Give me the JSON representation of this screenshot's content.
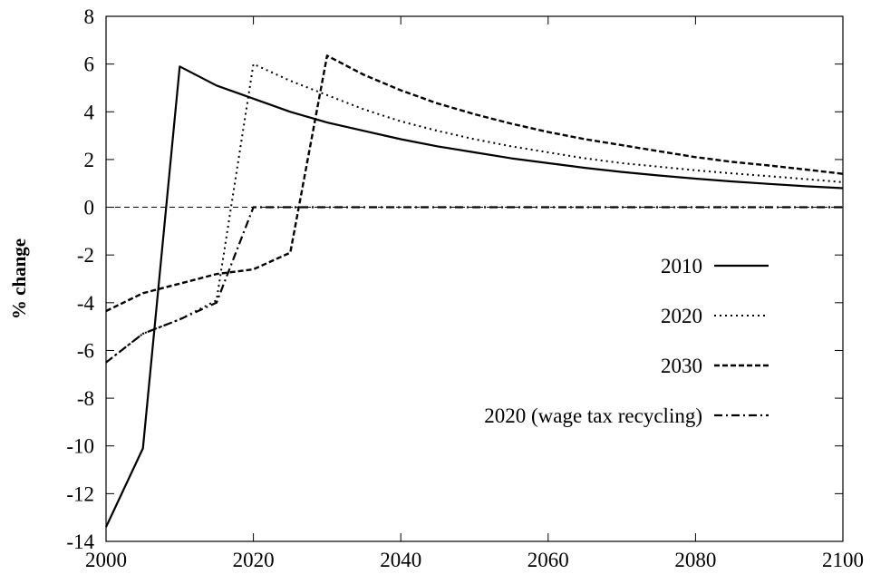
{
  "chart_data": {
    "type": "line",
    "title": "",
    "xlabel": "",
    "ylabel": "% change",
    "xlim": [
      2000,
      2100
    ],
    "ylim": [
      -14,
      8
    ],
    "xticks": [
      2000,
      2020,
      2040,
      2060,
      2080,
      2100
    ],
    "yticks": [
      -14,
      -12,
      -10,
      -8,
      -6,
      -4,
      -2,
      0,
      2,
      4,
      6,
      8
    ],
    "grid": false,
    "legend_position": "center-right",
    "zero_line": true,
    "series": [
      {
        "name": "2010",
        "style": "solid",
        "x": [
          2000,
          2005,
          2010,
          2015,
          2020,
          2025,
          2030,
          2035,
          2040,
          2045,
          2050,
          2055,
          2060,
          2065,
          2070,
          2075,
          2080,
          2085,
          2090,
          2095,
          2100
        ],
        "y": [
          -13.4,
          -10.1,
          5.9,
          5.1,
          4.55,
          4.0,
          3.55,
          3.2,
          2.85,
          2.55,
          2.3,
          2.05,
          1.85,
          1.65,
          1.48,
          1.33,
          1.2,
          1.08,
          0.98,
          0.88,
          0.8
        ]
      },
      {
        "name": "2020",
        "style": "dotted",
        "x": [
          2000,
          2005,
          2010,
          2015,
          2020,
          2025,
          2030,
          2035,
          2040,
          2045,
          2050,
          2055,
          2060,
          2065,
          2070,
          2075,
          2080,
          2085,
          2090,
          2095,
          2100
        ],
        "y": [
          -6.5,
          -5.3,
          -4.7,
          -3.9,
          6.0,
          5.3,
          4.7,
          4.1,
          3.6,
          3.2,
          2.85,
          2.55,
          2.3,
          2.05,
          1.85,
          1.7,
          1.55,
          1.42,
          1.3,
          1.18,
          1.05
        ]
      },
      {
        "name": "2030",
        "style": "dashed",
        "x": [
          2000,
          2005,
          2010,
          2015,
          2020,
          2025,
          2030,
          2035,
          2040,
          2045,
          2050,
          2055,
          2060,
          2065,
          2070,
          2075,
          2080,
          2085,
          2090,
          2095,
          2100
        ],
        "y": [
          -4.35,
          -3.6,
          -3.2,
          -2.8,
          -2.6,
          -1.9,
          6.35,
          5.55,
          4.9,
          4.35,
          3.9,
          3.5,
          3.15,
          2.85,
          2.6,
          2.35,
          2.1,
          1.9,
          1.75,
          1.58,
          1.4
        ]
      },
      {
        "name": "2020 (wage tax recycling)",
        "style": "dashdot",
        "x": [
          2000,
          2005,
          2010,
          2015,
          2020,
          2025,
          2030,
          2035,
          2040,
          2045,
          2050,
          2055,
          2060,
          2065,
          2070,
          2075,
          2080,
          2085,
          2090,
          2095,
          2100
        ],
        "y": [
          -6.5,
          -5.3,
          -4.7,
          -4.0,
          0.0,
          0.0,
          0.0,
          0.0,
          0.0,
          0.0,
          0.0,
          0.0,
          0.0,
          0.0,
          0.0,
          0.0,
          0.0,
          0.0,
          0.0,
          0.0,
          0.0
        ]
      }
    ]
  }
}
